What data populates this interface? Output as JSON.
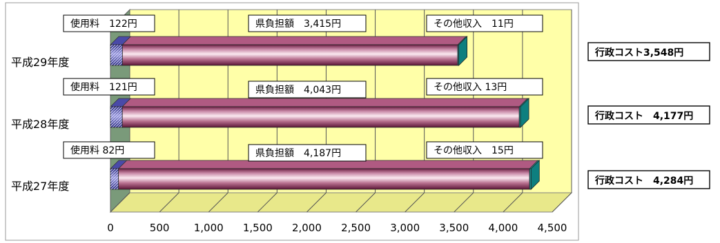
{
  "chart_data": {
    "type": "bar",
    "orientation": "horizontal",
    "stacked": true,
    "categories": [
      "平成29年度",
      "平成28年度",
      "平成27年度"
    ],
    "series": [
      {
        "name": "使用料",
        "values": [
          122,
          121,
          82
        ],
        "color": "#4a4aa8"
      },
      {
        "name": "県負担額",
        "values": [
          3415,
          4043,
          4187
        ],
        "color": "#9a3d66"
      },
      {
        "name": "その他収入",
        "values": [
          11,
          13,
          15
        ],
        "color": "#1aa3a3"
      }
    ],
    "totals": [
      3548,
      4177,
      4284
    ],
    "segment_labels": [
      [
        "使用料　122円",
        "県負担額　3,415円",
        "その他収入　11円"
      ],
      [
        "使用料　121円",
        "県負担額　4,043円",
        "その他収入 13円"
      ],
      [
        "使用料 82円",
        "県負担額　4,187円",
        "その他収入　15円"
      ]
    ],
    "total_labels": [
      "行政コスト3,548円",
      "行政コスト　4,177円",
      "行政コスト　4,284円"
    ],
    "xlim": [
      0,
      4500
    ],
    "x_ticks": [
      0,
      500,
      1000,
      1500,
      2000,
      2500,
      3000,
      3500,
      4000,
      4500
    ],
    "x_tick_labels": [
      "0",
      "500",
      "1,000",
      "1,500",
      "2,000",
      "2,500",
      "3,000",
      "3,500",
      "4,000",
      "4,500"
    ],
    "grid": true,
    "plot_background": "#ffffa8",
    "wall_color": "#7a9a7a"
  }
}
